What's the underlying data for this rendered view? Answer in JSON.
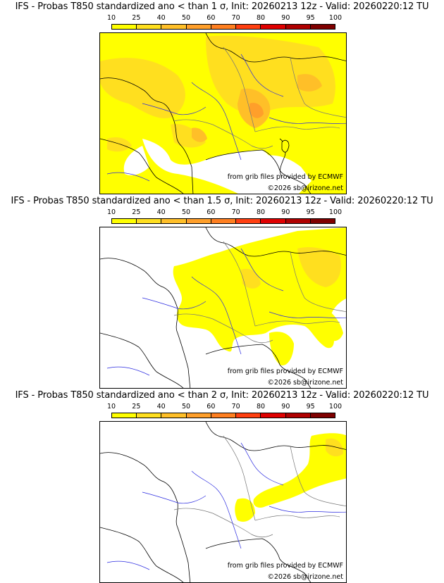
{
  "colorbar": {
    "ticks": [
      "10",
      "25",
      "40",
      "50",
      "60",
      "70",
      "80",
      "90",
      "95",
      "100"
    ],
    "colors": [
      "#ffff00",
      "#ffdf1f",
      "#ffbf28",
      "#ff9f2a",
      "#ff7f20",
      "#ff3f10",
      "#df0000",
      "#af0000",
      "#7f0000"
    ]
  },
  "panels": [
    {
      "title": "IFS - Probas T850  standardized ano < than 1 σ, Init: 20260213 12z - Valid: 20260220:12 TU",
      "source": "from grib files provided by ECMWF",
      "copyright": "©2026 sb@irizone.net"
    },
    {
      "title": "IFS - Probas T850  standardized ano < than 1.5 σ, Init: 20260213 12z - Valid: 20260220:12 TU",
      "source": "from grib files provided by ECMWF",
      "copyright": "©2026 sb@irizone.net"
    },
    {
      "title": "IFS - Probas T850  standardized ano < than 2 σ, Init: 20260213 12z - Valid: 20260220:12 TU",
      "source": "from grib files provided by ECMWF",
      "copyright": "©2026 sb@irizone.net"
    }
  ],
  "colors": {
    "coast": "#000000",
    "rivers": "#2a2ae0",
    "borders": "#888888",
    "prob10": "#ffff00",
    "prob25": "#ffdf1f",
    "prob40": "#ffbf28",
    "prob50": "#ff9f2a"
  }
}
